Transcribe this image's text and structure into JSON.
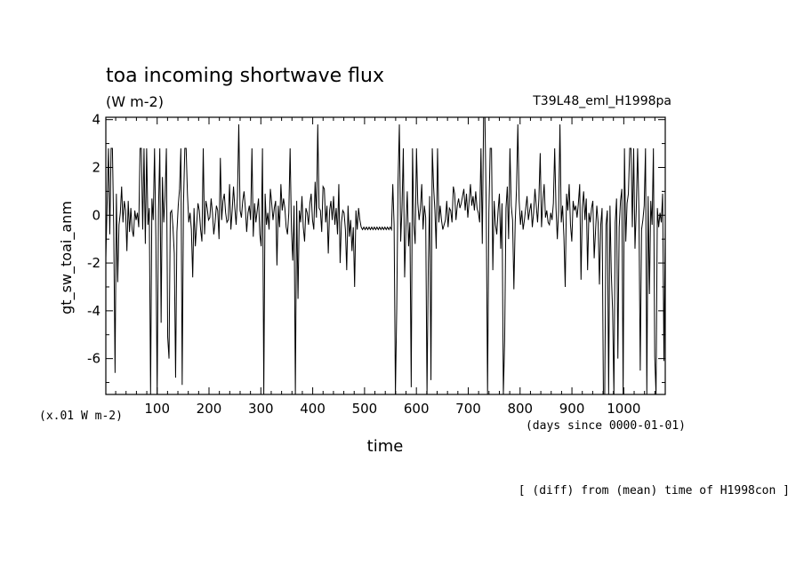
{
  "chart_data": {
    "type": "line",
    "title": "toa incoming shortwave flux",
    "subtitle": "(W m-2)",
    "experiment": "T39L48_eml_H1998pa",
    "ylabel": "gt_sw_toai_anm",
    "yunit": "(x.01 W m-2)",
    "xlabel": "time",
    "xunit": "(days since 0000-01-01)",
    "footnote": "[ (diff) from (mean) time of H1998con ]",
    "xlim": [
      1,
      1080
    ],
    "ylim": [
      -7.5,
      4.1
    ],
    "xticks": [
      100,
      200,
      300,
      400,
      500,
      600,
      700,
      800,
      900,
      1000
    ],
    "yticks": [
      -6,
      -4,
      -2,
      0,
      2,
      4
    ],
    "grid": false,
    "series": [
      {
        "values": [
          -1.8,
          0.5,
          2.8,
          -0.8,
          2.8,
          2.8,
          -0.6,
          -6.6,
          0.9,
          -2.8,
          -0.4,
          0.1,
          1.2,
          -0.3,
          0.6,
          0.2,
          -1.5,
          0.6,
          -0.7,
          0.3,
          -0.6,
          -0.9,
          0.2,
          -0.2,
          0.1,
          -0.5,
          2.8,
          2.8,
          -0.6,
          2.8,
          -1.2,
          2.8,
          -0.4,
          0.3,
          -7.5,
          0.7,
          -0.2,
          2.8,
          -0.9,
          -7.5,
          0.2,
          2.8,
          -4.5,
          1.6,
          -0.3,
          0.8,
          2.8,
          -5.1,
          -6.0,
          0.1,
          0.2,
          -0.5,
          -1.6,
          -6.8,
          -0.7,
          0.4,
          1.1,
          2.8,
          -7.1,
          0.5,
          2.8,
          2.8,
          0.9,
          -0.3,
          0.1,
          -0.6,
          -2.6,
          0.3,
          -1.3,
          -0.4,
          0.5,
          0.2,
          -0.6,
          -1.1,
          2.8,
          -0.8,
          0.6,
          0.3,
          -0.2,
          -0.1,
          0.7,
          0.1,
          -0.8,
          -0.3,
          0.4,
          0.2,
          -1.0,
          2.4,
          -0.2,
          0.6,
          0.9,
          0.1,
          -0.3,
          -0.2,
          1.3,
          -0.6,
          0.2,
          1.2,
          0.3,
          -0.4,
          0.8,
          3.8,
          0.2,
          -0.1,
          0.6,
          1.0,
          0.3,
          -0.7,
          0.1,
          0.4,
          -0.2,
          2.8,
          -0.9,
          0.5,
          -0.3,
          0.2,
          0.7,
          -0.8,
          -1.3,
          2.8,
          -7.5,
          0.9,
          -0.4,
          0.1,
          -0.6,
          1.1,
          0.5,
          -0.2,
          0.3,
          0.6,
          -2.1,
          0.4,
          -0.5,
          1.3,
          0.2,
          0.7,
          0.3,
          -0.5,
          -0.8,
          0.1,
          2.8,
          -0.6,
          -1.9,
          0.4,
          -7.5,
          0.6,
          -3.5,
          0.2,
          -0.3,
          0.8,
          -0.5,
          -1.1,
          0.3,
          0.1,
          -0.4,
          0.5,
          0.9,
          -0.2,
          -0.6,
          1.4,
          -0.1,
          3.8,
          0.3,
          0.2,
          -0.7,
          1.2,
          1.1,
          -0.3,
          0.4,
          -1.6,
          0.2,
          0.6,
          -0.2,
          0.8,
          -0.4,
          0.3,
          -0.8,
          1.3,
          -2.0,
          -0.3,
          0.2,
          0.1,
          -0.6,
          -2.3,
          0.4,
          -0.9,
          -0.2,
          -1.5,
          -0.5,
          -3.0,
          0.2,
          -0.6,
          0.3,
          -0.2,
          -0.5,
          -0.6,
          -0.5,
          -0.6,
          -0.5,
          -0.6,
          -0.5,
          -0.6,
          -0.5,
          -0.6,
          -0.5,
          -0.6,
          -0.5,
          -0.6,
          -0.5,
          -0.6,
          -0.5,
          -0.6,
          -0.5,
          -0.6,
          -0.5,
          -0.6,
          -0.5,
          -0.6,
          1.3,
          -0.4,
          -7.5,
          -3.9,
          1.4,
          3.8,
          -1.1,
          0.3,
          2.8,
          -2.6,
          -0.5,
          1.0,
          -1.3,
          -0.3,
          -7.2,
          2.8,
          -0.4,
          -1.2,
          2.8,
          0.5,
          -0.2,
          0.3,
          1.3,
          -0.6,
          0.4,
          -0.1,
          -7.5,
          -2.0,
          0.8,
          -6.9,
          2.8,
          1.2,
          0.2,
          -1.4,
          2.8,
          -0.3,
          0.4,
          -0.2,
          -0.6,
          -0.4,
          -0.2,
          0.6,
          -0.5,
          0.3,
          0.2,
          -0.3,
          1.2,
          0.9,
          -0.2,
          0.4,
          0.7,
          0.3,
          0.5,
          0.8,
          1.1,
          0.2,
          0.9,
          -0.1,
          0.6,
          1.3,
          0.4,
          0.8,
          0.2,
          1.0,
          0.3,
          0.1,
          -0.3,
          2.8,
          -1.2,
          4.1,
          4.1,
          0.3,
          -7.5,
          0.1,
          2.8,
          2.8,
          -2.3,
          0.6,
          -0.4,
          -0.8,
          0.2,
          0.9,
          -1.4,
          0.5,
          -7.5,
          -5.2,
          0.3,
          1.2,
          -1.0,
          2.8,
          0.4,
          -0.2,
          -3.1,
          -0.3,
          1.1,
          3.8,
          0.6,
          -0.4,
          0.2,
          -0.6,
          -0.2,
          0.3,
          0.8,
          -0.2,
          0.2,
          0.5,
          -0.5,
          0.1,
          1.1,
          0.4,
          -0.3,
          0.7,
          2.6,
          -0.5,
          0.6,
          1.3,
          -0.1,
          0.2,
          -0.3,
          -0.4,
          0.1,
          -0.2,
          0.5,
          2.8,
          0.3,
          -1.0,
          0.2,
          3.8,
          -0.3,
          0.4,
          -0.9,
          -3.0,
          0.9,
          0.2,
          1.3,
          -0.4,
          -1.1,
          0.6,
          0.2,
          0.4,
          -0.1,
          0.5,
          1.3,
          -2.7,
          0.3,
          1.0,
          -0.2,
          0.7,
          -2.3,
          0.1,
          -0.3,
          0.3,
          0.6,
          -1.8,
          -0.7,
          0.4,
          -0.3,
          -2.9,
          -0.4,
          0.3,
          -7.5,
          -7.5,
          -0.4,
          0.2,
          -7.5,
          0.4,
          -2.4,
          -4.0,
          -7.5,
          -0.3,
          0.7,
          -6.0,
          -0.5,
          0.6,
          1.1,
          -7.5,
          2.8,
          -1.1,
          0.5,
          0.9,
          2.8,
          2.8,
          -0.5,
          2.8,
          -1.4,
          0.3,
          2.8,
          0.2,
          -6.5,
          -0.6,
          -0.2,
          0.4,
          2.8,
          -7.5,
          0.8,
          -3.3,
          0.6,
          -0.4,
          2.8,
          -5.9,
          -7.5,
          0.3,
          -0.5,
          0.1,
          -0.3,
          0.9,
          -6.1,
          -0.5
        ]
      }
    ]
  }
}
